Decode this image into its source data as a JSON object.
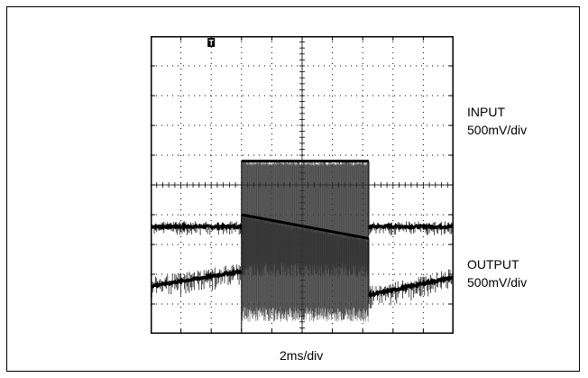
{
  "chart_data": {
    "type": "line",
    "subtype": "oscilloscope",
    "grid": true,
    "x_divisions": 10,
    "y_divisions": 10,
    "xlabel": "2ms/div",
    "trigger_marker": "T",
    "trigger_x_div": 2.0,
    "series": [
      {
        "name": "INPUT",
        "scale": "500mV/div",
        "baseline_div": 3.6,
        "burst_start_div": 3.0,
        "burst_end_div": 7.2,
        "burst_top_start_div": 5.8,
        "burst_top_end_div": 5.8,
        "burst_bottom_div": 1.9,
        "baseline_noise_div": 0.3
      },
      {
        "name": "OUTPUT",
        "scale": "500mV/div",
        "baseline_start_div": 1.6,
        "baseline_at_burst_div": 2.1,
        "baseline_end_div": 1.3,
        "after_burst_start_div": 1.3,
        "after_burst_end_div": 1.9,
        "burst_start_div": 3.0,
        "burst_end_div": 7.2,
        "burst_top_start_div": 4.0,
        "burst_top_end_div": 3.2,
        "burst_bottom_div": 0.4,
        "baseline_noise_div": 0.5
      }
    ]
  },
  "labels": {
    "ch1_name": "INPUT",
    "ch1_scale": "500mV/div",
    "ch2_name": "OUTPUT",
    "ch2_scale": "500mV/div",
    "x_scale": "2ms/div",
    "trigger": "T"
  }
}
